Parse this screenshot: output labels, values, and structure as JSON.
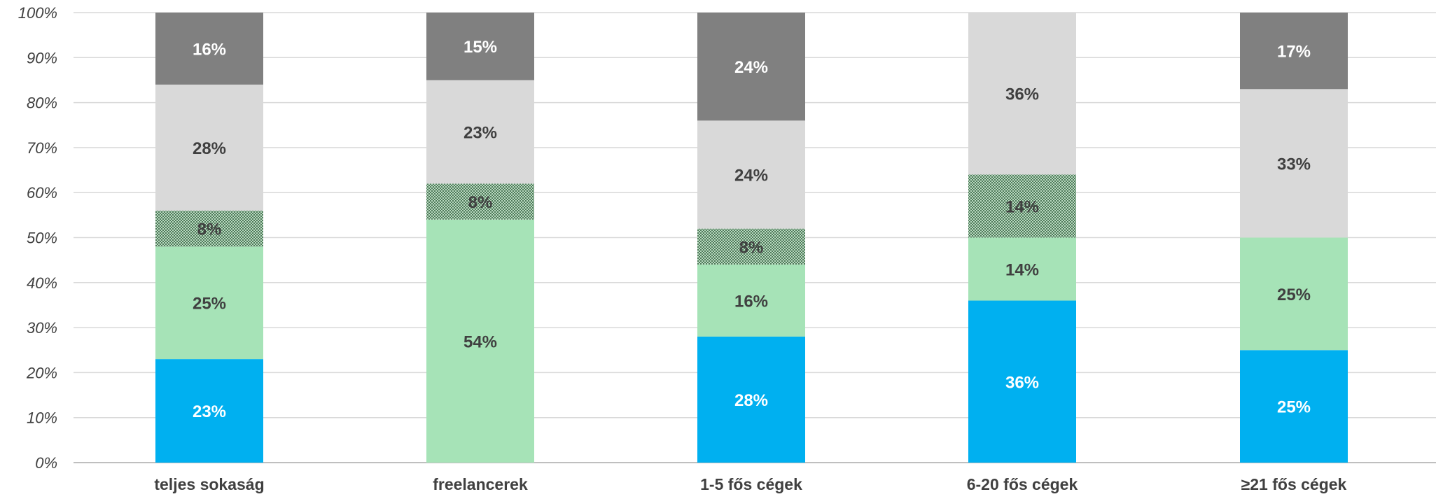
{
  "chart_data": {
    "type": "bar",
    "stacked": true,
    "categories": [
      "teljes sokaság",
      "freelancerek",
      "1-5 fős cégek",
      "6-20 fős cégek",
      "≥21 fős cégek"
    ],
    "series": [
      {
        "color": "#00b0f0",
        "label_color": "#ffffff",
        "pattern": false,
        "values": [
          23,
          0,
          28,
          36,
          25
        ],
        "labels": [
          "23%",
          "",
          "28%",
          "36%",
          "25%"
        ]
      },
      {
        "color": "#a6e3b7",
        "label_color": "#404040",
        "pattern": false,
        "values": [
          25,
          54,
          16,
          14,
          25
        ],
        "labels": [
          "25%",
          "54%",
          "16%",
          "14%",
          "25%"
        ]
      },
      {
        "color": "#7fa58a",
        "label_color": "#404040",
        "pattern": true,
        "values": [
          8,
          8,
          8,
          14,
          0
        ],
        "labels": [
          "8%",
          "8%",
          "8%",
          "14%",
          ""
        ]
      },
      {
        "color": "#d9d9d9",
        "label_color": "#404040",
        "pattern": false,
        "values": [
          28,
          23,
          24,
          36,
          33
        ],
        "labels": [
          "28%",
          "23%",
          "24%",
          "36%",
          "33%"
        ]
      },
      {
        "color": "#808080",
        "label_color": "#ffffff",
        "pattern": false,
        "values": [
          16,
          15,
          24,
          0,
          17
        ],
        "labels": [
          "16%",
          "15%",
          "24%",
          "",
          "17%"
        ]
      }
    ],
    "y_ticks": [
      "0%",
      "10%",
      "20%",
      "30%",
      "40%",
      "50%",
      "60%",
      "70%",
      "80%",
      "90%",
      "100%"
    ],
    "ylim": [
      0,
      100
    ],
    "grid": true,
    "legend": false
  }
}
